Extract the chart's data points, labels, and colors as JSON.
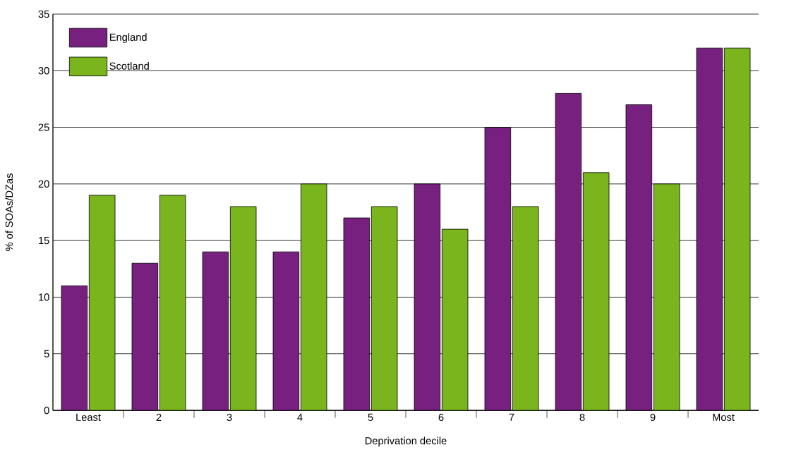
{
  "chart_data": {
    "type": "bar",
    "xlabel": "Deprivation decile",
    "ylabel": "% of SOAs/DZas",
    "categories": [
      "Least",
      "2",
      "3",
      "4",
      "5",
      "6",
      "7",
      "8",
      "9",
      "Most"
    ],
    "series": [
      {
        "name": "England",
        "color": "#77207f",
        "values": [
          11,
          13,
          14,
          14,
          17,
          20,
          25,
          28,
          27,
          32
        ]
      },
      {
        "name": "Scotland",
        "color": "#7ab51d",
        "values": [
          19,
          19,
          18,
          20,
          18,
          16,
          18,
          21,
          20,
          32
        ]
      }
    ],
    "ylim": [
      0,
      35
    ],
    "yticks": [
      0,
      5,
      10,
      15,
      20,
      25,
      30,
      35
    ],
    "grid": "y",
    "legend": "top left"
  }
}
